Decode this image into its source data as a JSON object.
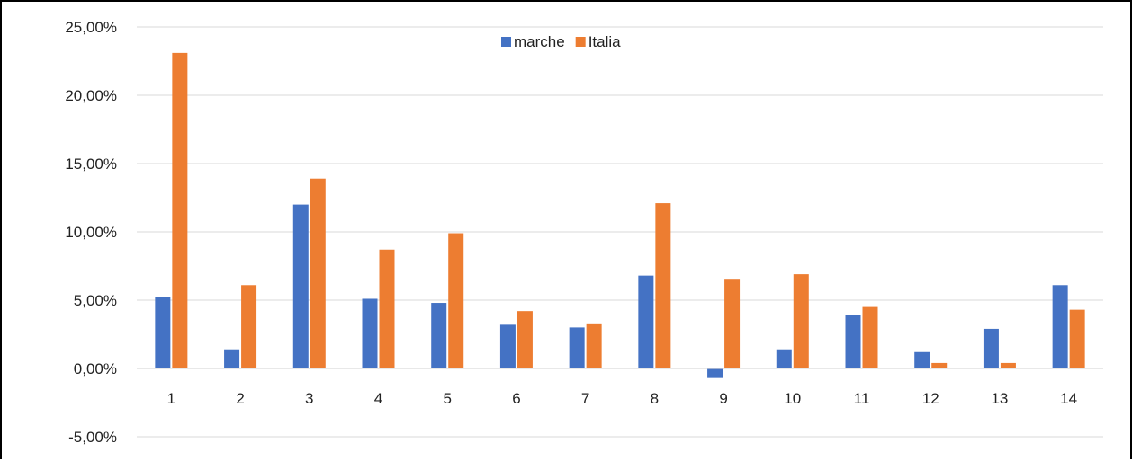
{
  "chart_data": {
    "type": "bar",
    "categories": [
      "1",
      "2",
      "3",
      "4",
      "5",
      "6",
      "7",
      "8",
      "9",
      "10",
      "11",
      "12",
      "13",
      "14"
    ],
    "series": [
      {
        "name": "marche",
        "color": "#4472c4",
        "values": [
          5.2,
          1.4,
          12.0,
          5.1,
          4.8,
          3.2,
          3.0,
          6.8,
          -0.7,
          1.4,
          3.9,
          1.2,
          2.9,
          6.1
        ]
      },
      {
        "name": "Italia",
        "color": "#ed7d31",
        "values": [
          23.1,
          6.1,
          13.9,
          8.7,
          9.9,
          4.2,
          3.3,
          12.1,
          6.5,
          6.9,
          4.5,
          0.4,
          0.4,
          4.3
        ]
      }
    ],
    "ylim": [
      -5,
      25
    ],
    "y_ticks": [
      {
        "value": 25,
        "label": "25,00%"
      },
      {
        "value": 20,
        "label": "20,00%"
      },
      {
        "value": 15,
        "label": "15,00%"
      },
      {
        "value": 10,
        "label": "10,00%"
      },
      {
        "value": 5,
        "label": "5,00%"
      },
      {
        "value": 0,
        "label": "0,00%"
      },
      {
        "value": -5,
        "label": "-5,00%"
      }
    ],
    "grid": true,
    "gridline_color": "#d9d9d9",
    "legend_position": "top-center",
    "title": "",
    "xlabel": "",
    "ylabel": ""
  }
}
